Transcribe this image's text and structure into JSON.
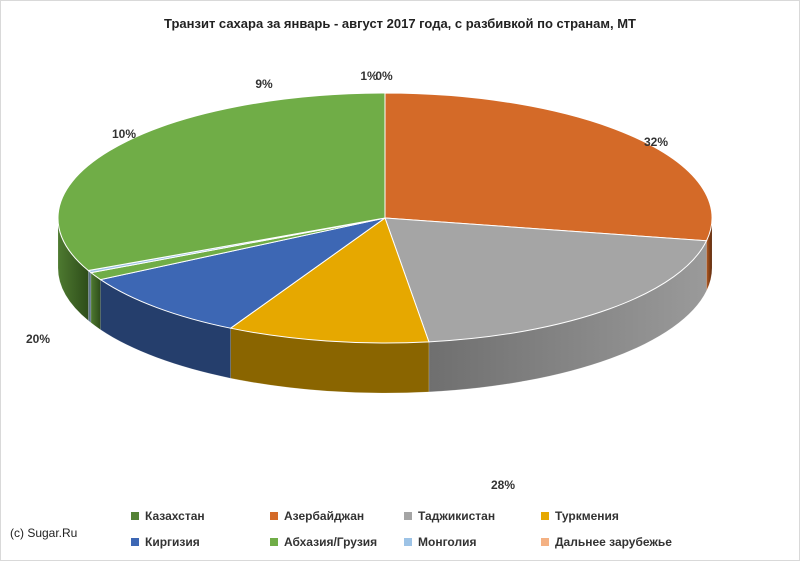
{
  "chart_data": {
    "type": "pie",
    "title": "Транзит сахара за январь - август 2017 года, с разбивкой по странам, МТ",
    "slices": [
      {
        "name": "Казахстан",
        "value": 0,
        "label": "",
        "color": "#70ad47"
      },
      {
        "name": "Азербайджан",
        "value": 28,
        "label": "28%",
        "color": "#d46a28"
      },
      {
        "name": "Таджикистан",
        "value": 20,
        "label": "20%",
        "color": "#a5a5a5"
      },
      {
        "name": "Туркмения",
        "value": 10,
        "label": "10%",
        "color": "#e6a800"
      },
      {
        "name": "Киргизия",
        "value": 9,
        "label": "9%",
        "color": "#3d67b4"
      },
      {
        "name": "Абхазия/Грузия",
        "value": 1,
        "label": "1%",
        "color": "#70ad47"
      },
      {
        "name": "Монголия",
        "value": 0.3,
        "label": "0%",
        "color": "#9dc3e6"
      },
      {
        "name": "Дальнее зарубежье",
        "value": 0,
        "label": "",
        "color": "#f4b183"
      },
      {
        "name": "",
        "value": 32,
        "label": "32%",
        "color": "#70ad47"
      }
    ],
    "legend_placement": "bottom",
    "three_d": true
  },
  "footer": {
    "copyright": "(c) Sugar.Ru"
  }
}
